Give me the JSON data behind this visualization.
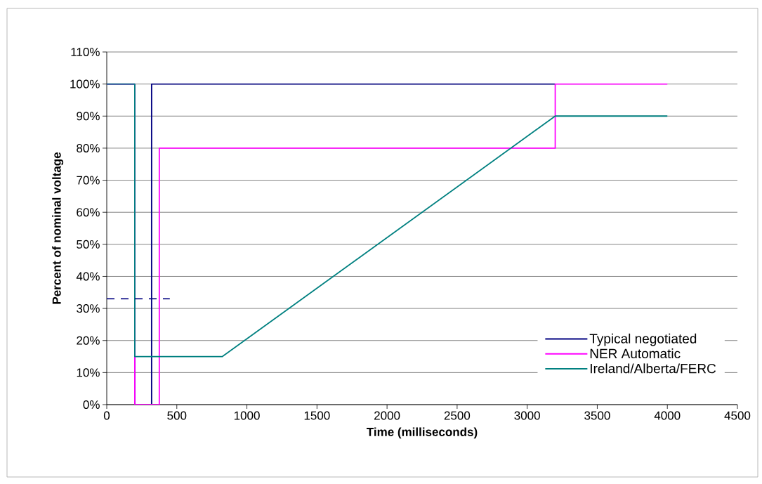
{
  "chart_data": {
    "type": "line",
    "xlabel": "Time (milliseconds)",
    "ylabel": "Percent of nominal voltage",
    "series": [
      {
        "name": "Typical negotiated",
        "color": "#000080",
        "x": [
          0,
          200,
          200,
          320,
          320,
          3200
        ],
        "values": [
          100,
          100,
          0,
          0,
          100,
          100
        ]
      },
      {
        "name": "NER Automatic",
        "color": "#ff00ff",
        "x": [
          0,
          200,
          200,
          375,
          375,
          3200,
          3200,
          4000
        ],
        "values": [
          100,
          100,
          0,
          0,
          80,
          80,
          100,
          100
        ]
      },
      {
        "name": "Ireland/Alberta/FERC",
        "color": "#008080",
        "x": [
          0,
          200,
          200,
          825,
          3200,
          4000
        ],
        "values": [
          100,
          100,
          15,
          15,
          90,
          90
        ]
      },
      {
        "color": "#000080",
        "x": [
          0,
          450
        ],
        "values": [
          33,
          33
        ],
        "line_style": "dashed"
      }
    ],
    "xlim": [
      0,
      4500
    ],
    "xticks": [
      0,
      500,
      1000,
      1500,
      2000,
      2500,
      3000,
      3500,
      4000,
      4500
    ],
    "ylim": [
      0,
      110
    ],
    "yticks": [
      {
        "value": 0,
        "label": "0%"
      },
      {
        "value": 10,
        "label": "10%"
      },
      {
        "value": 20,
        "label": "20%"
      },
      {
        "value": 30,
        "label": "30%"
      },
      {
        "value": 40,
        "label": "40%"
      },
      {
        "value": 50,
        "label": "50%"
      },
      {
        "value": 60,
        "label": "60%"
      },
      {
        "value": 70,
        "label": "70%"
      },
      {
        "value": 80,
        "label": "80%"
      },
      {
        "value": 90,
        "label": "90%"
      },
      {
        "value": 100,
        "label": "100%"
      },
      {
        "value": 110,
        "label": "110%"
      }
    ],
    "grid": "y",
    "legend": "bottom right",
    "line_style": "solid",
    "marker": "none"
  }
}
